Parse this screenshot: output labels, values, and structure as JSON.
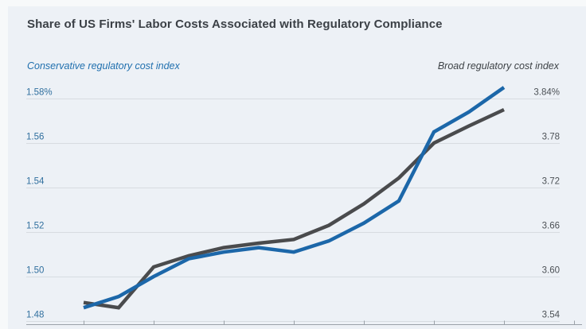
{
  "figure": {
    "title": "Share of US Firms' Labor Costs Associated with Regulatory Compliance",
    "left_axis_title": "Conservative regulatory cost index",
    "right_axis_title": "Broad regulatory cost index"
  },
  "colors": {
    "conservative_line": "#1c67a9",
    "broad_line": "#4a4b4d",
    "gridline": "#d7dce1",
    "axis_line": "#9aa1a8",
    "left_tick_text": "#31709f",
    "right_tick_text": "#4c5156",
    "panel_background": "#edf1f6"
  },
  "chart_data": {
    "type": "line",
    "title": "Share of US Firms' Labor Costs Associated with Regulatory Compliance",
    "grid": true,
    "legend_position": "top (as axis titles, left and right)",
    "x_axis": {
      "n_points": 13,
      "tick_labels_visible": false,
      "note": "x-axis tick labels are cropped out of the screenshot; tick marks appear at every other data point"
    },
    "left_axis": {
      "title": "Conservative regulatory cost index",
      "min": 1.48,
      "max": 1.58,
      "ticks": [
        {
          "label": "1.58%",
          "value": 1.58
        },
        {
          "label": "1.56",
          "value": 1.56
        },
        {
          "label": "1.54",
          "value": 1.54
        },
        {
          "label": "1.52",
          "value": 1.52
        },
        {
          "label": "1.50",
          "value": 1.5
        },
        {
          "label": "1.48",
          "value": 1.48
        }
      ]
    },
    "right_axis": {
      "title": "Broad regulatory cost index",
      "min": 3.54,
      "max": 3.84,
      "ticks": [
        {
          "label": "3.84%",
          "value": 3.84
        },
        {
          "label": "3.78",
          "value": 3.78
        },
        {
          "label": "3.72",
          "value": 3.72
        },
        {
          "label": "3.66",
          "value": 3.66
        },
        {
          "label": "3.60",
          "value": 3.6
        },
        {
          "label": "3.54",
          "value": 3.54
        }
      ]
    },
    "series": [
      {
        "name": "Broad regulatory cost index",
        "axis": "right",
        "color": "#4a4b4d",
        "values": [
          3.565,
          3.558,
          3.613,
          3.628,
          3.639,
          3.645,
          3.65,
          3.669,
          3.698,
          3.733,
          3.78,
          3.803,
          3.825
        ]
      },
      {
        "name": "Conservative regulatory cost index",
        "axis": "left",
        "color": "#1c67a9",
        "values": [
          1.486,
          1.491,
          1.5,
          1.508,
          1.511,
          1.513,
          1.511,
          1.516,
          1.524,
          1.534,
          1.565,
          1.574,
          1.585
        ]
      }
    ]
  }
}
